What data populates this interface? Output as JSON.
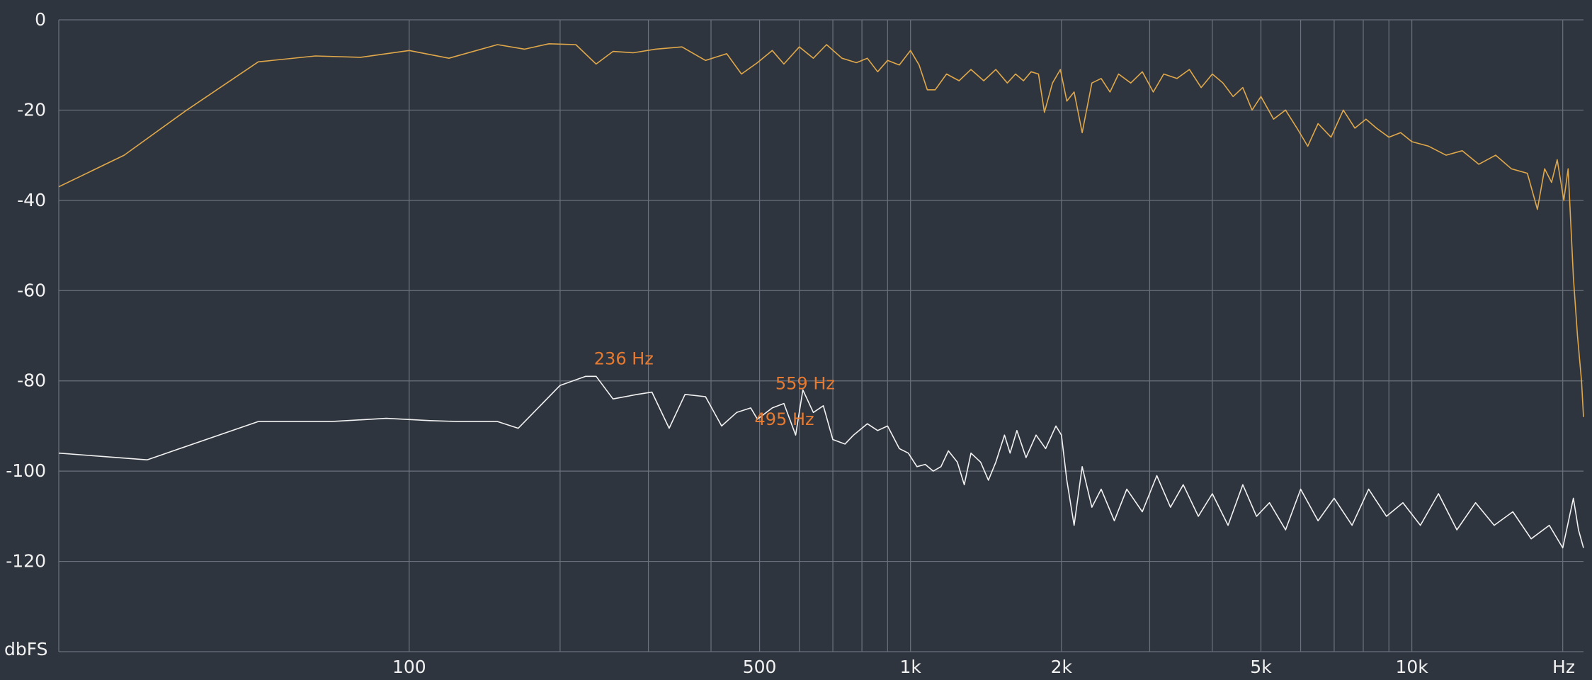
{
  "chart_data": {
    "type": "line",
    "x_scale": "log",
    "xlim": [
      20,
      22000
    ],
    "ylim": [
      -140,
      0
    ],
    "grid": true,
    "y_ticks": [
      {
        "value": 0,
        "label": "0"
      },
      {
        "value": -20,
        "label": "-20"
      },
      {
        "value": -40,
        "label": "-40"
      },
      {
        "value": -60,
        "label": "-60"
      },
      {
        "value": -80,
        "label": "-80"
      },
      {
        "value": -100,
        "label": "-100"
      },
      {
        "value": -120,
        "label": "-120"
      }
    ],
    "y_unit_label": "dbFS",
    "x_ticks": [
      {
        "value": 100,
        "label": "100"
      },
      {
        "value": 500,
        "label": "500"
      },
      {
        "value": 1000,
        "label": "1k"
      },
      {
        "value": 2000,
        "label": "2k"
      },
      {
        "value": 5000,
        "label": "5k"
      },
      {
        "value": 10000,
        "label": "10k"
      }
    ],
    "x_unit_label": "Hz",
    "x_gridlines": [
      20,
      100,
      200,
      300,
      400,
      500,
      600,
      700,
      800,
      900,
      1000,
      2000,
      3000,
      4000,
      5000,
      6000,
      7000,
      8000,
      9000,
      10000,
      20000
    ],
    "series": [
      {
        "color": "#e0a84a",
        "points": [
          [
            20,
            -37
          ],
          [
            27,
            -30
          ],
          [
            36,
            -20
          ],
          [
            50,
            -9.3
          ],
          [
            65,
            -8
          ],
          [
            80,
            -8.3
          ],
          [
            100,
            -6.8
          ],
          [
            120,
            -8.5
          ],
          [
            150,
            -5.5
          ],
          [
            170,
            -6.5
          ],
          [
            190,
            -5.3
          ],
          [
            215,
            -5.5
          ],
          [
            236,
            -9.8
          ],
          [
            255,
            -7
          ],
          [
            280,
            -7.3
          ],
          [
            310,
            -6.5
          ],
          [
            350,
            -6
          ],
          [
            390,
            -9
          ],
          [
            430,
            -7.5
          ],
          [
            460,
            -12
          ],
          [
            495,
            -9.5
          ],
          [
            530,
            -6.8
          ],
          [
            559,
            -9.8
          ],
          [
            600,
            -6
          ],
          [
            640,
            -8.5
          ],
          [
            680,
            -5.5
          ],
          [
            730,
            -8.5
          ],
          [
            780,
            -9.5
          ],
          [
            820,
            -8.5
          ],
          [
            860,
            -11.5
          ],
          [
            900,
            -9
          ],
          [
            950,
            -10
          ],
          [
            1000,
            -6.8
          ],
          [
            1040,
            -10
          ],
          [
            1080,
            -15.5
          ],
          [
            1120,
            -15.5
          ],
          [
            1180,
            -12
          ],
          [
            1250,
            -13.5
          ],
          [
            1320,
            -11
          ],
          [
            1400,
            -13.5
          ],
          [
            1480,
            -11
          ],
          [
            1560,
            -14
          ],
          [
            1620,
            -12
          ],
          [
            1680,
            -13.5
          ],
          [
            1740,
            -11.5
          ],
          [
            1800,
            -12
          ],
          [
            1850,
            -20.5
          ],
          [
            1920,
            -14
          ],
          [
            1990,
            -11
          ],
          [
            2050,
            -18
          ],
          [
            2120,
            -16
          ],
          [
            2200,
            -25
          ],
          [
            2300,
            -14
          ],
          [
            2400,
            -13
          ],
          [
            2500,
            -16
          ],
          [
            2600,
            -12
          ],
          [
            2750,
            -14
          ],
          [
            2900,
            -11.5
          ],
          [
            3050,
            -16
          ],
          [
            3200,
            -12
          ],
          [
            3400,
            -13
          ],
          [
            3600,
            -11
          ],
          [
            3800,
            -15
          ],
          [
            4000,
            -12
          ],
          [
            4200,
            -14
          ],
          [
            4400,
            -17
          ],
          [
            4600,
            -15
          ],
          [
            4800,
            -20
          ],
          [
            5000,
            -17
          ],
          [
            5300,
            -22
          ],
          [
            5600,
            -20
          ],
          [
            5900,
            -24
          ],
          [
            6200,
            -28
          ],
          [
            6500,
            -23
          ],
          [
            6900,
            -26
          ],
          [
            7300,
            -20
          ],
          [
            7700,
            -24
          ],
          [
            8100,
            -22
          ],
          [
            8500,
            -24
          ],
          [
            9000,
            -26
          ],
          [
            9500,
            -25
          ],
          [
            10000,
            -27
          ],
          [
            10800,
            -28
          ],
          [
            11700,
            -30
          ],
          [
            12600,
            -29
          ],
          [
            13600,
            -32
          ],
          [
            14700,
            -30
          ],
          [
            15800,
            -33
          ],
          [
            17000,
            -34
          ],
          [
            17800,
            -42
          ],
          [
            18400,
            -33
          ],
          [
            19000,
            -36
          ],
          [
            19500,
            -31
          ],
          [
            20100,
            -40
          ],
          [
            20500,
            -33
          ],
          [
            21000,
            -57
          ],
          [
            21400,
            -70
          ],
          [
            21800,
            -80
          ],
          [
            22000,
            -88
          ]
        ]
      },
      {
        "color": "#f2f2f2",
        "points": [
          [
            20,
            -96
          ],
          [
            30,
            -97.5
          ],
          [
            50,
            -89
          ],
          [
            70,
            -89
          ],
          [
            90,
            -88.3
          ],
          [
            110,
            -88.8
          ],
          [
            125,
            -89
          ],
          [
            150,
            -89
          ],
          [
            165,
            -90.5
          ],
          [
            200,
            -81
          ],
          [
            225,
            -79
          ],
          [
            236,
            -79
          ],
          [
            255,
            -84
          ],
          [
            285,
            -83
          ],
          [
            305,
            -82.5
          ],
          [
            330,
            -90.5
          ],
          [
            355,
            -83
          ],
          [
            390,
            -83.5
          ],
          [
            420,
            -90
          ],
          [
            450,
            -87
          ],
          [
            480,
            -86
          ],
          [
            495,
            -88.5
          ],
          [
            530,
            -86
          ],
          [
            559,
            -85
          ],
          [
            590,
            -92
          ],
          [
            610,
            -82
          ],
          [
            640,
            -87
          ],
          [
            670,
            -85.5
          ],
          [
            700,
            -93
          ],
          [
            740,
            -94
          ],
          [
            770,
            -92
          ],
          [
            820,
            -89.5
          ],
          [
            860,
            -91
          ],
          [
            900,
            -90
          ],
          [
            950,
            -95
          ],
          [
            990,
            -96
          ],
          [
            1030,
            -99
          ],
          [
            1070,
            -98.5
          ],
          [
            1110,
            -100
          ],
          [
            1150,
            -99
          ],
          [
            1190,
            -95.5
          ],
          [
            1240,
            -98
          ],
          [
            1280,
            -103
          ],
          [
            1320,
            -96
          ],
          [
            1380,
            -98
          ],
          [
            1430,
            -102
          ],
          [
            1480,
            -98
          ],
          [
            1540,
            -92
          ],
          [
            1580,
            -96
          ],
          [
            1630,
            -91
          ],
          [
            1700,
            -97
          ],
          [
            1780,
            -92
          ],
          [
            1860,
            -95
          ],
          [
            1950,
            -90
          ],
          [
            2000,
            -92
          ],
          [
            2050,
            -102
          ],
          [
            2120,
            -112
          ],
          [
            2200,
            -99
          ],
          [
            2300,
            -108
          ],
          [
            2400,
            -104
          ],
          [
            2550,
            -111
          ],
          [
            2700,
            -104
          ],
          [
            2900,
            -109
          ],
          [
            3100,
            -101
          ],
          [
            3300,
            -108
          ],
          [
            3500,
            -103
          ],
          [
            3750,
            -110
          ],
          [
            4000,
            -105
          ],
          [
            4300,
            -112
          ],
          [
            4600,
            -103
          ],
          [
            4900,
            -110
          ],
          [
            5200,
            -107
          ],
          [
            5600,
            -113
          ],
          [
            6000,
            -104
          ],
          [
            6500,
            -111
          ],
          [
            7000,
            -106
          ],
          [
            7600,
            -112
          ],
          [
            8200,
            -104
          ],
          [
            8900,
            -110
          ],
          [
            9600,
            -107
          ],
          [
            10400,
            -112
          ],
          [
            11300,
            -105
          ],
          [
            12300,
            -113
          ],
          [
            13400,
            -107
          ],
          [
            14600,
            -112
          ],
          [
            15900,
            -109
          ],
          [
            17300,
            -115
          ],
          [
            18800,
            -112
          ],
          [
            20000,
            -117
          ],
          [
            21000,
            -106
          ],
          [
            21500,
            -113
          ],
          [
            22000,
            -117
          ]
        ]
      }
    ],
    "annotations": [
      {
        "text": "236 Hz",
        "x": 236,
        "y": -79
      },
      {
        "text": "559 Hz",
        "x": 559,
        "y": -85
      },
      {
        "text": "495 Hz",
        "x": 495,
        "y": -88.5
      }
    ]
  }
}
